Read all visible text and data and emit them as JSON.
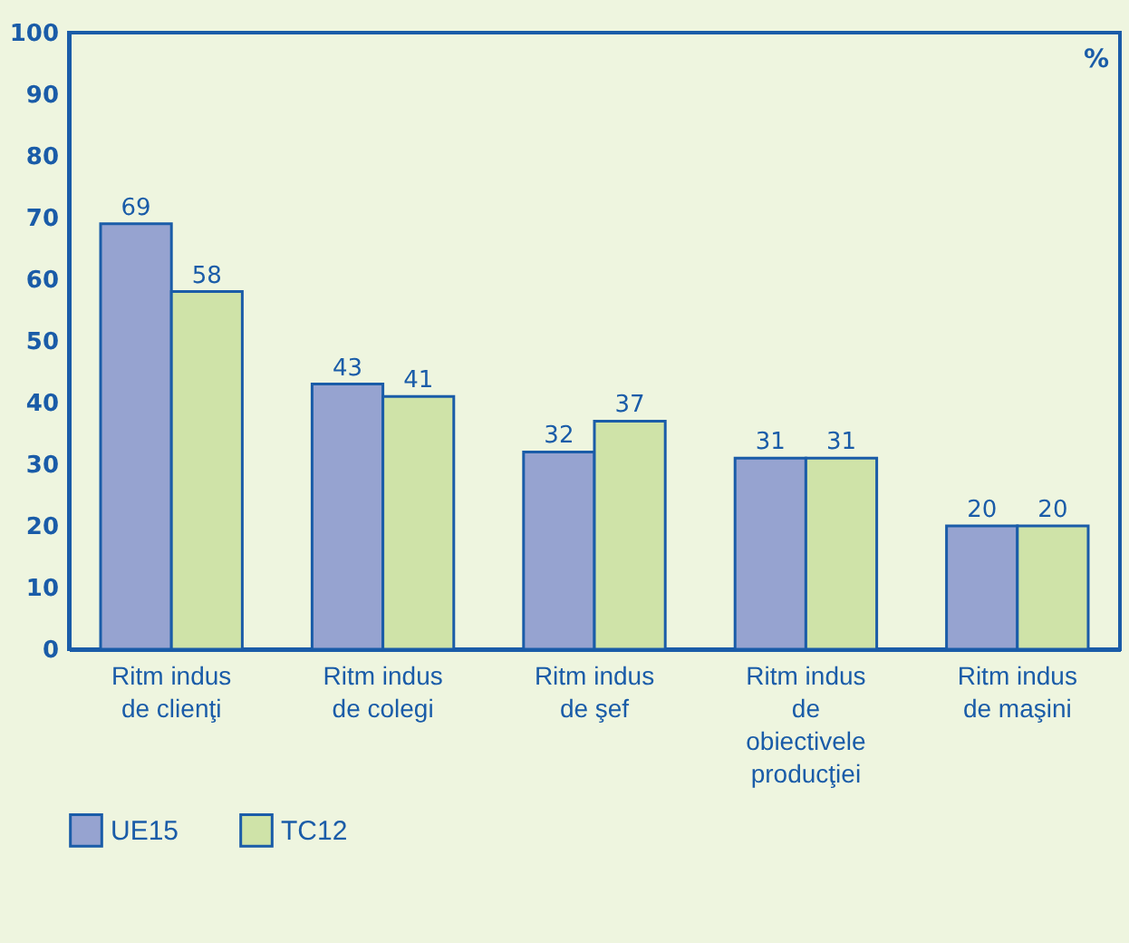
{
  "chart_data": {
    "type": "bar",
    "categories": [
      "Ritm indus de clienţi",
      "Ritm indus de colegi",
      "Ritm indus de şef",
      "Ritm indus de obiectivele producţiei",
      "Ritm indus de maşini"
    ],
    "series": [
      {
        "name": "UE15",
        "color": "#96a3d0",
        "values": [
          69,
          43,
          32,
          31,
          20
        ]
      },
      {
        "name": "TC12",
        "color": "#cfe3a8",
        "values": [
          58,
          41,
          37,
          31,
          20
        ]
      }
    ],
    "ylim": [
      0,
      100
    ],
    "yticks": [
      0,
      10,
      20,
      30,
      40,
      50,
      60,
      70,
      80,
      90,
      100
    ],
    "data_labels": true,
    "legend": "bottom",
    "grid": false,
    "annotations": [
      "%"
    ]
  }
}
